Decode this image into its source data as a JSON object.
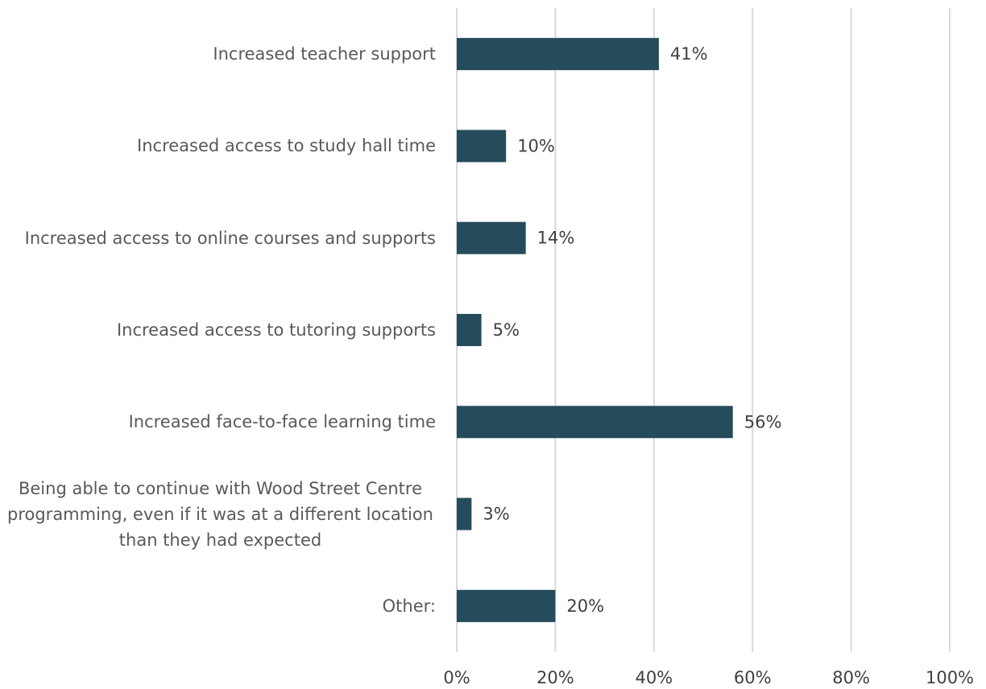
{
  "chart_data": {
    "type": "barh",
    "categories": [
      "Increased teacher support",
      "Increased access to study hall time",
      "Increased access to online courses and supports",
      "Increased access to tutoring supports",
      "Increased face-to-face learning time",
      "Being able to continue with Wood Street Centre programming, even if it was at a different location than they had expected",
      "Other:"
    ],
    "values": [
      41,
      10,
      14,
      5,
      56,
      3,
      20
    ],
    "value_labels": [
      "41%",
      "10%",
      "14%",
      "5%",
      "56%",
      "3%",
      "20%"
    ],
    "color": "#264b5a",
    "xlim": [
      0,
      100
    ],
    "xticks": [
      {
        "value": 0,
        "label": "0%"
      },
      {
        "value": 20,
        "label": "20%"
      },
      {
        "value": 40,
        "label": "40%"
      },
      {
        "value": 60,
        "label": "60%"
      },
      {
        "value": 80,
        "label": "80%"
      },
      {
        "value": 100,
        "label": "100%"
      }
    ],
    "grid": true
  }
}
